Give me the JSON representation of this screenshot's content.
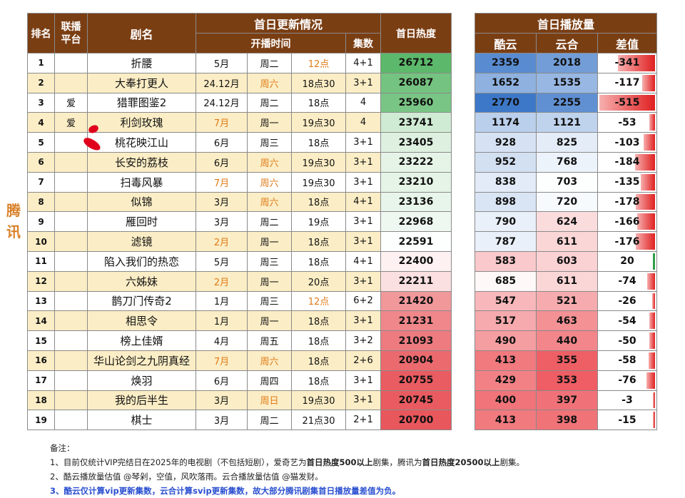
{
  "side_label": "腾讯",
  "headers": {
    "rank": "排名",
    "platform": "联播平台",
    "title": "剧名",
    "update_group": "首日更新情况",
    "broadcast_time": "开播时间",
    "episodes": "集数",
    "heat": "首日热度",
    "plays_group": "首日播放量",
    "kuyun": "酷云",
    "yunhe": "云合",
    "diff": "差值"
  },
  "rows": [
    {
      "rank": "1",
      "platform": "",
      "title": "折腰",
      "month": "5月",
      "weekday": "周二",
      "time": "12点",
      "eps": "4+1",
      "heat": "26712",
      "kuyun": "2359",
      "yunhe": "2018",
      "diff": "-341"
    },
    {
      "rank": "2",
      "platform": "",
      "title": "大奉打更人",
      "month": "24.12月",
      "weekday": "周六",
      "time": "18点30",
      "eps": "3+1",
      "heat": "26087",
      "kuyun": "1652",
      "yunhe": "1535",
      "diff": "-117"
    },
    {
      "rank": "3",
      "platform": "爱",
      "title": "猎罪图鉴2",
      "month": "24.12月",
      "weekday": "周二",
      "time": "18点",
      "eps": "4",
      "heat": "25960",
      "kuyun": "2770",
      "yunhe": "2255",
      "diff": "-515"
    },
    {
      "rank": "4",
      "platform": "爱",
      "title": "利剑玫瑰",
      "month": "7月",
      "weekday": "周一",
      "time": "19点30",
      "eps": "4",
      "heat": "23741",
      "kuyun": "1174",
      "yunhe": "1121",
      "diff": "-53"
    },
    {
      "rank": "5",
      "platform": "",
      "title": "桃花映江山",
      "month": "6月",
      "weekday": "周三",
      "time": "18点",
      "eps": "3+1",
      "heat": "23405",
      "kuyun": "928",
      "yunhe": "825",
      "diff": "-103"
    },
    {
      "rank": "6",
      "platform": "",
      "title": "长安的荔枝",
      "month": "6月",
      "weekday": "周六",
      "time": "19点30",
      "eps": "3+1",
      "heat": "23222",
      "kuyun": "952",
      "yunhe": "768",
      "diff": "-184"
    },
    {
      "rank": "7",
      "platform": "",
      "title": "扫毒风暴",
      "month": "7月",
      "weekday": "周六",
      "time": "19点30",
      "eps": "3+1",
      "heat": "23210",
      "kuyun": "838",
      "yunhe": "703",
      "diff": "-135"
    },
    {
      "rank": "8",
      "platform": "",
      "title": "似锦",
      "month": "3月",
      "weekday": "周六",
      "time": "18点",
      "eps": "4+1",
      "heat": "23136",
      "kuyun": "898",
      "yunhe": "720",
      "diff": "-178"
    },
    {
      "rank": "9",
      "platform": "",
      "title": "雁回时",
      "month": "3月",
      "weekday": "周二",
      "time": "19点",
      "eps": "3+1",
      "heat": "22968",
      "kuyun": "790",
      "yunhe": "624",
      "diff": "-166"
    },
    {
      "rank": "10",
      "platform": "",
      "title": "滤镜",
      "month": "2月",
      "weekday": "周一",
      "time": "18点",
      "eps": "3+1",
      "heat": "22591",
      "kuyun": "787",
      "yunhe": "611",
      "diff": "-176"
    },
    {
      "rank": "11",
      "platform": "",
      "title": "陷入我们的热恋",
      "month": "5月",
      "weekday": "周三",
      "time": "18点",
      "eps": "4+1",
      "heat": "22400",
      "kuyun": "583",
      "yunhe": "603",
      "diff": "20"
    },
    {
      "rank": "12",
      "platform": "",
      "title": "六姊妹",
      "month": "2月",
      "weekday": "周一",
      "time": "20点",
      "eps": "3+1",
      "heat": "22211",
      "kuyun": "685",
      "yunhe": "611",
      "diff": "-74"
    },
    {
      "rank": "13",
      "platform": "",
      "title": "鹊刀门传奇2",
      "month": "1月",
      "weekday": "周三",
      "time": "12点",
      "eps": "6+2",
      "heat": "21420",
      "kuyun": "547",
      "yunhe": "521",
      "diff": "-26"
    },
    {
      "rank": "14",
      "platform": "",
      "title": "相思令",
      "month": "1月",
      "weekday": "周一",
      "time": "18点",
      "eps": "3+1",
      "heat": "21231",
      "kuyun": "517",
      "yunhe": "463",
      "diff": "-54"
    },
    {
      "rank": "15",
      "platform": "",
      "title": "榜上佳婿",
      "month": "4月",
      "weekday": "周五",
      "time": "18点",
      "eps": "3+2",
      "heat": "21093",
      "kuyun": "490",
      "yunhe": "440",
      "diff": "-50"
    },
    {
      "rank": "16",
      "platform": "",
      "title": "华山论剑之九阴真经",
      "month": "7月",
      "weekday": "周六",
      "time": "18点",
      "eps": "2+6",
      "heat": "20904",
      "kuyun": "413",
      "yunhe": "355",
      "diff": "-58"
    },
    {
      "rank": "17",
      "platform": "",
      "title": "焕羽",
      "month": "6月",
      "weekday": "周四",
      "time": "18点",
      "eps": "3+1",
      "heat": "20755",
      "kuyun": "429",
      "yunhe": "353",
      "diff": "-76"
    },
    {
      "rank": "18",
      "platform": "",
      "title": "我的后半生",
      "month": "3月",
      "weekday": "周日",
      "time": "19点30",
      "eps": "3+1",
      "heat": "20745",
      "kuyun": "400",
      "yunhe": "397",
      "diff": "-3"
    },
    {
      "rank": "19",
      "platform": "",
      "title": "棋士",
      "month": "3月",
      "weekday": "周二",
      "time": "21点30",
      "eps": "2+1",
      "heat": "20700",
      "kuyun": "413",
      "yunhe": "398",
      "diff": "-15"
    }
  ],
  "notes": {
    "label": "备注：",
    "line1_a": "1、目前仅统计VIP完结日在2025年的电视剧（不包括短剧），爱奇艺为",
    "line1_b": "首日热度500以上",
    "line1_c": "剧集，腾讯为",
    "line1_d": "首日热度20500以上",
    "line1_e": "剧集。",
    "line2": "2、酷云播放量估值 @琴剁，空值，风吹落雨。云合播放量估值 @猫发财。",
    "line3": "3、酷云仅计算vip更新集数，云合计算svip更新集数，故大部分腾讯剧集首日播放量差值为负。"
  },
  "colors": {
    "header_bg": "#7a3e13",
    "band": "#fbedc5",
    "orange_text": "#e07b17",
    "heat_high": "#5cb86a",
    "heat_low": "#e8575c",
    "blue_high": "#3d78c8",
    "red_low": "#ee5e64",
    "notes_blue": "#2a4fd0"
  }
}
